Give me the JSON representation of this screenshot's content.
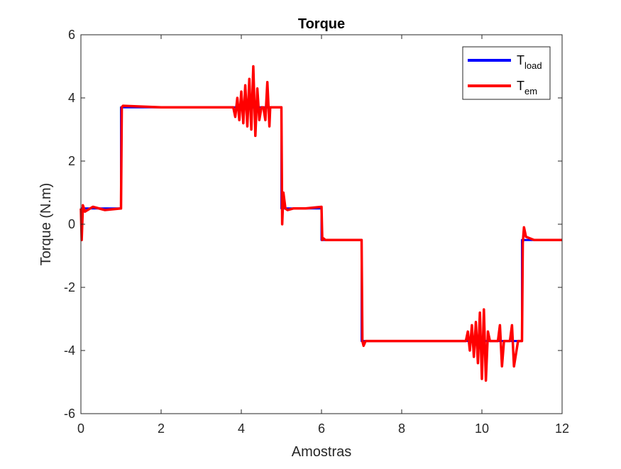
{
  "chart_data": {
    "type": "line",
    "title": "Torque",
    "xlabel": "Amostras",
    "ylabel": "Torque (N.m)",
    "xlim": [
      0,
      12
    ],
    "ylim": [
      -6,
      6
    ],
    "xticks": [
      0,
      2,
      4,
      6,
      8,
      10,
      12
    ],
    "yticks": [
      -6,
      -4,
      -2,
      0,
      2,
      4,
      6
    ],
    "xtick_labels": [
      "0",
      "2",
      "4",
      "6",
      "8",
      "10",
      "12"
    ],
    "ytick_labels": [
      "-6",
      "-4",
      "-2",
      "0",
      "2",
      "4",
      "6"
    ],
    "grid": false,
    "legend_position": "top-right",
    "series": [
      {
        "name": "T_load",
        "legend_main": "T",
        "legend_sub": "load",
        "color": "#0000ff",
        "x": [
          0,
          1,
          1,
          5,
          5,
          6,
          6,
          7,
          7,
          11,
          11,
          12
        ],
        "y": [
          0.5,
          0.5,
          3.7,
          3.7,
          0.5,
          0.5,
          -0.5,
          -0.5,
          -3.7,
          -3.7,
          -0.5,
          -0.5
        ]
      },
      {
        "name": "T_em",
        "legend_main": "T",
        "legend_sub": "em",
        "color": "#ff0000",
        "x": [
          0,
          0.02,
          0.05,
          0.1,
          0.3,
          0.6,
          1.0,
          1.02,
          1.05,
          2.0,
          3.0,
          3.8,
          3.85,
          3.9,
          3.95,
          4.0,
          4.05,
          4.1,
          4.15,
          4.2,
          4.25,
          4.3,
          4.35,
          4.4,
          4.45,
          4.5,
          4.55,
          4.6,
          4.65,
          4.7,
          4.72,
          4.75,
          4.8,
          4.9,
          5.0,
          5.02,
          5.05,
          5.08,
          5.1,
          5.15,
          5.3,
          5.6,
          6.0,
          6.02,
          6.05,
          6.1,
          6.3,
          6.6,
          7.0,
          7.02,
          7.05,
          7.1,
          7.5,
          8.5,
          9.6,
          9.65,
          9.7,
          9.75,
          9.8,
          9.85,
          9.9,
          9.95,
          10.0,
          10.05,
          10.1,
          10.15,
          10.2,
          10.3,
          10.4,
          10.45,
          10.5,
          10.55,
          10.7,
          10.75,
          10.8,
          10.9,
          11.0,
          11.02,
          11.05,
          11.1,
          11.3,
          11.6,
          12.0
        ],
        "y": [
          0.5,
          -0.5,
          0.6,
          0.4,
          0.55,
          0.45,
          0.5,
          3.7,
          3.75,
          3.7,
          3.7,
          3.7,
          3.4,
          4.0,
          3.3,
          4.2,
          3.2,
          4.4,
          3.1,
          4.6,
          3.0,
          5.0,
          2.8,
          4.3,
          3.3,
          3.7,
          3.7,
          3.3,
          4.5,
          3.1,
          3.7,
          3.7,
          3.7,
          3.7,
          3.7,
          0.0,
          1.0,
          0.7,
          0.5,
          0.45,
          0.5,
          0.5,
          0.55,
          -0.5,
          -0.45,
          -0.5,
          -0.5,
          -0.5,
          -0.5,
          -3.7,
          -3.85,
          -3.7,
          -3.7,
          -3.7,
          -3.7,
          -3.4,
          -4.0,
          -3.2,
          -4.2,
          -3.1,
          -4.4,
          -2.8,
          -4.9,
          -2.7,
          -4.95,
          -3.4,
          -3.7,
          -3.7,
          -3.7,
          -3.2,
          -4.5,
          -3.7,
          -3.7,
          -3.2,
          -4.5,
          -3.7,
          -3.7,
          -0.6,
          -0.1,
          -0.4,
          -0.5,
          -0.5,
          -0.5
        ]
      }
    ]
  }
}
